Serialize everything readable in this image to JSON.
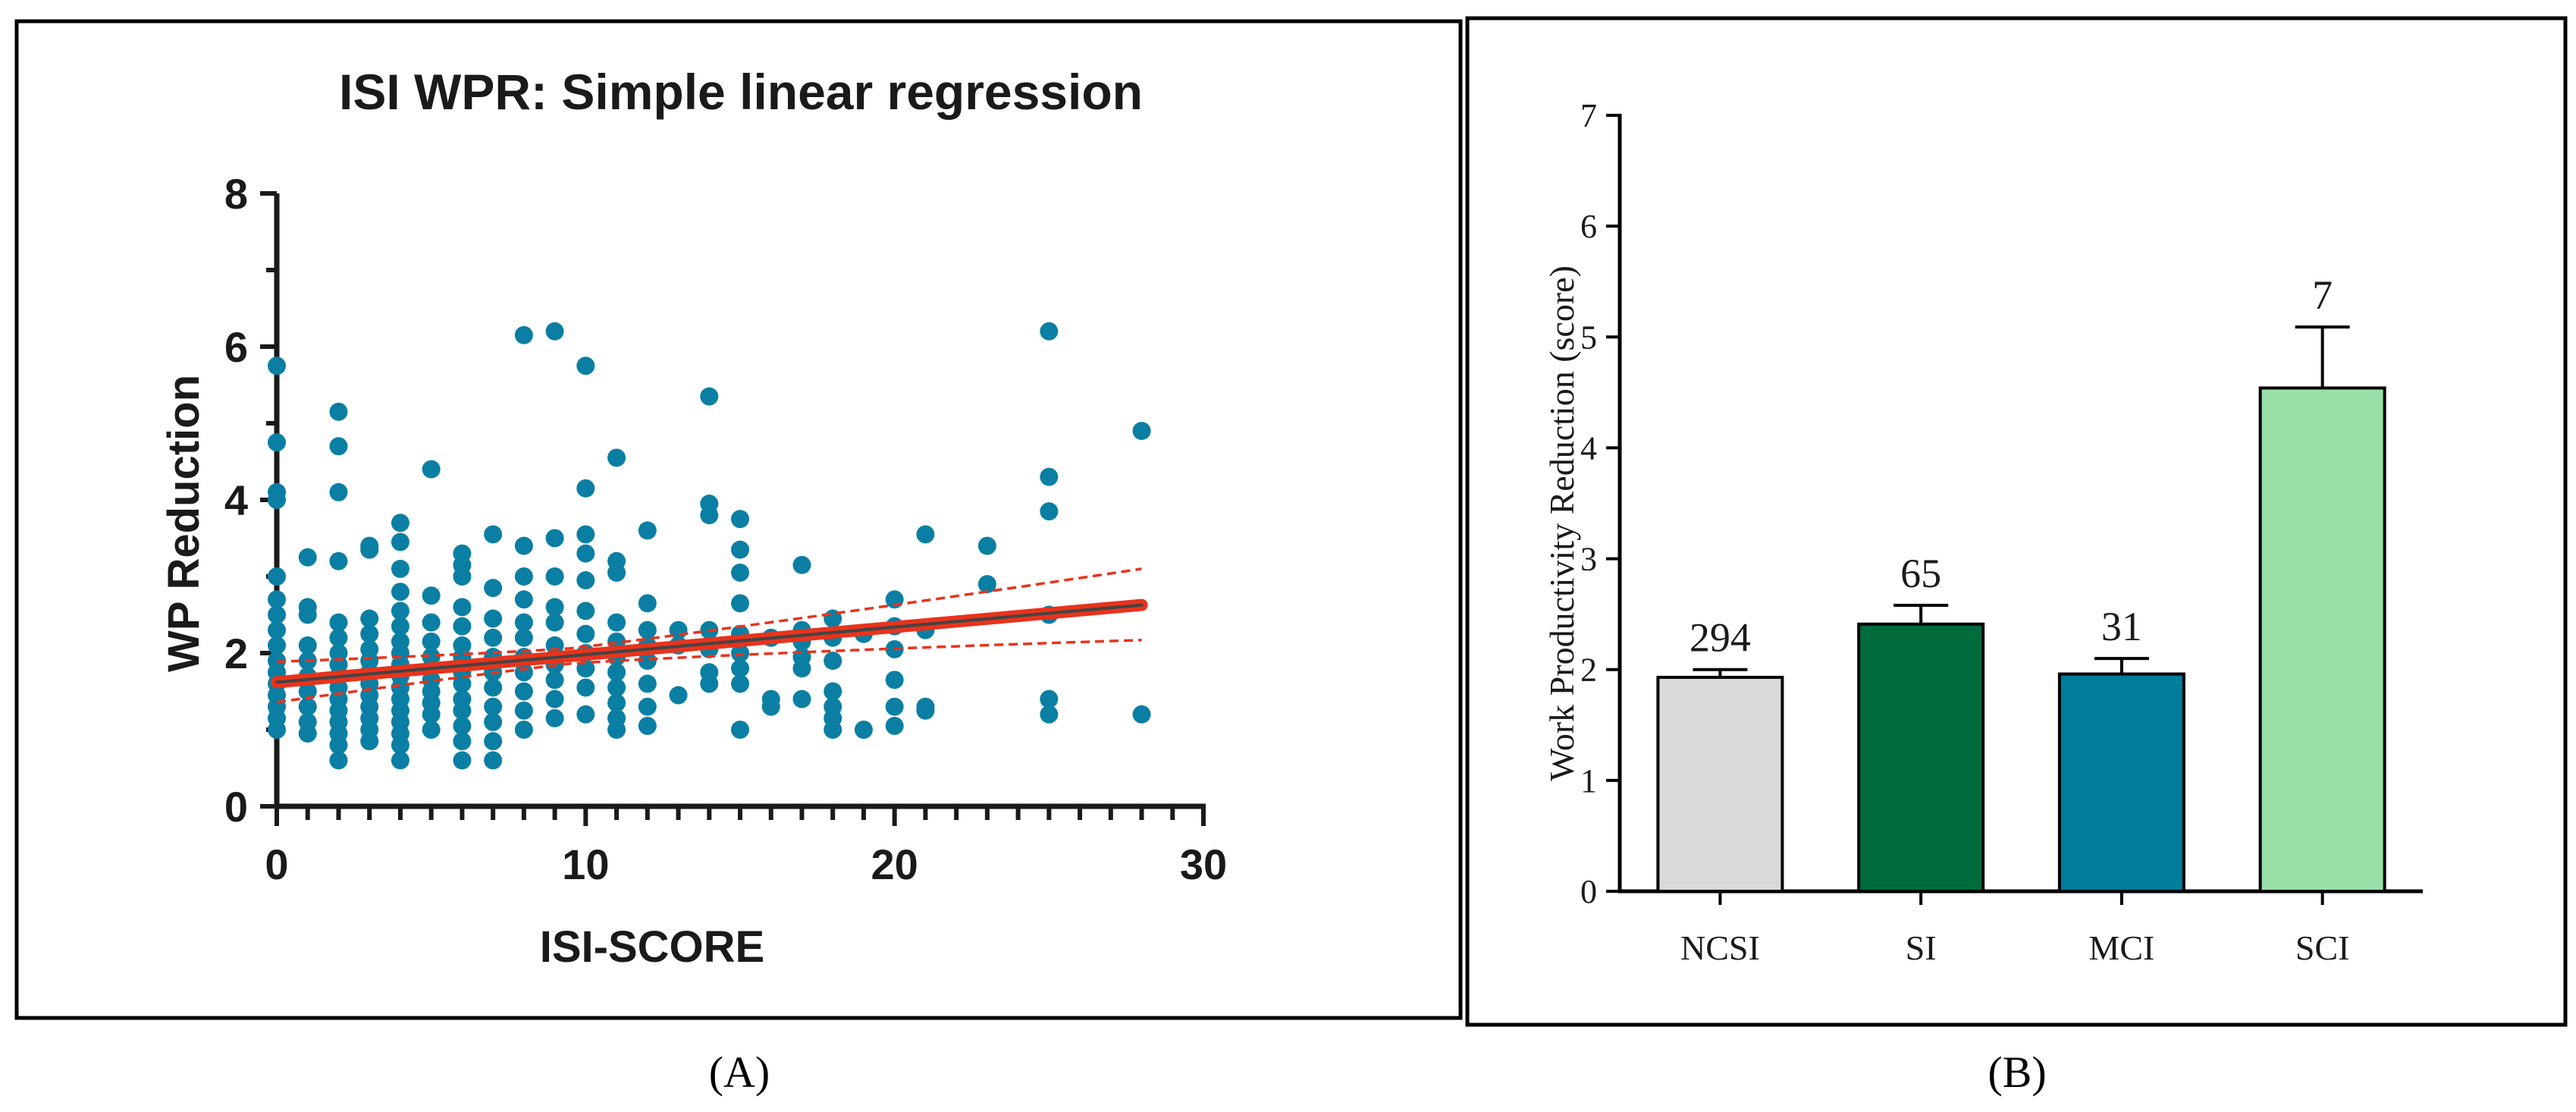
{
  "figure": {
    "panel_labels": [
      "(A)",
      "(B)"
    ]
  },
  "chart_data": [
    {
      "panel": "A",
      "type": "scatter",
      "title": "ISI WPR: Simple linear regression",
      "xlabel": "ISI-SCORE",
      "ylabel": "WP Reduction",
      "xlim": [
        0,
        30
      ],
      "ylim": [
        0,
        8
      ],
      "xticks": [
        0,
        10,
        20,
        30
      ],
      "yticks": [
        0,
        2,
        4,
        6,
        8
      ],
      "grid": false,
      "colors": {
        "points": "#0a7fa3",
        "fit": "#e8331c",
        "ci": "#e8331c",
        "fit_core": "#444444"
      },
      "regression": {
        "intercept": 1.62,
        "slope": 0.036,
        "ci_low_at_x_max": 2.27,
        "ci_high_at_x_max": 3.0
      },
      "points": [
        [
          0,
          5.75
        ],
        [
          0,
          4.75
        ],
        [
          0,
          4.1
        ],
        [
          0,
          4.0
        ],
        [
          0,
          3.0
        ],
        [
          0,
          2.7
        ],
        [
          0,
          2.5
        ],
        [
          0,
          2.3
        ],
        [
          0,
          2.1
        ],
        [
          0,
          1.9
        ],
        [
          0,
          1.75
        ],
        [
          0,
          1.6
        ],
        [
          0,
          1.45
        ],
        [
          0,
          1.3
        ],
        [
          0,
          1.15
        ],
        [
          0,
          1.0
        ],
        [
          1,
          3.25
        ],
        [
          1,
          2.6
        ],
        [
          1,
          2.5
        ],
        [
          1,
          2.1
        ],
        [
          1,
          1.9
        ],
        [
          1,
          1.7
        ],
        [
          1,
          1.5
        ],
        [
          1,
          1.3
        ],
        [
          1,
          1.1
        ],
        [
          1,
          0.95
        ],
        [
          2,
          5.15
        ],
        [
          2,
          4.7
        ],
        [
          2,
          4.1
        ],
        [
          2,
          3.2
        ],
        [
          2,
          2.4
        ],
        [
          2,
          2.2
        ],
        [
          2,
          2.0
        ],
        [
          2,
          1.85
        ],
        [
          2,
          1.7
        ],
        [
          2,
          1.55
        ],
        [
          2,
          1.4
        ],
        [
          2,
          1.25
        ],
        [
          2,
          1.1
        ],
        [
          2,
          0.95
        ],
        [
          2,
          0.8
        ],
        [
          2,
          0.6
        ],
        [
          3,
          3.4
        ],
        [
          3,
          3.35
        ],
        [
          3,
          2.45
        ],
        [
          3,
          2.25
        ],
        [
          3,
          2.05
        ],
        [
          3,
          1.9
        ],
        [
          3,
          1.75
        ],
        [
          3,
          1.6
        ],
        [
          3,
          1.45
        ],
        [
          3,
          1.3
        ],
        [
          3,
          1.15
        ],
        [
          3,
          1.0
        ],
        [
          3,
          0.85
        ],
        [
          4,
          3.7
        ],
        [
          4,
          3.45
        ],
        [
          4,
          3.1
        ],
        [
          4,
          2.8
        ],
        [
          4,
          2.55
        ],
        [
          4,
          2.35
        ],
        [
          4,
          2.15
        ],
        [
          4,
          2.0
        ],
        [
          4,
          1.85
        ],
        [
          4,
          1.7
        ],
        [
          4,
          1.55
        ],
        [
          4,
          1.4
        ],
        [
          4,
          1.25
        ],
        [
          4,
          1.1
        ],
        [
          4,
          0.95
        ],
        [
          4,
          0.8
        ],
        [
          4,
          0.6
        ],
        [
          5,
          4.4
        ],
        [
          5,
          2.75
        ],
        [
          5,
          2.4
        ],
        [
          5,
          2.15
        ],
        [
          5,
          1.95
        ],
        [
          5,
          1.8
        ],
        [
          5,
          1.65
        ],
        [
          5,
          1.5
        ],
        [
          5,
          1.35
        ],
        [
          5,
          1.2
        ],
        [
          5,
          1.0
        ],
        [
          6,
          3.3
        ],
        [
          6,
          3.15
        ],
        [
          6,
          3.0
        ],
        [
          6,
          2.6
        ],
        [
          6,
          2.35
        ],
        [
          6,
          2.1
        ],
        [
          6,
          1.95
        ],
        [
          6,
          1.75
        ],
        [
          6,
          1.6
        ],
        [
          6,
          1.4
        ],
        [
          6,
          1.25
        ],
        [
          6,
          1.05
        ],
        [
          6,
          0.85
        ],
        [
          6,
          0.6
        ],
        [
          7,
          3.55
        ],
        [
          7,
          2.85
        ],
        [
          7,
          2.45
        ],
        [
          7,
          2.2
        ],
        [
          7,
          1.95
        ],
        [
          7,
          1.75
        ],
        [
          7,
          1.55
        ],
        [
          7,
          1.3
        ],
        [
          7,
          1.1
        ],
        [
          7,
          0.85
        ],
        [
          7,
          0.6
        ],
        [
          8,
          6.15
        ],
        [
          8,
          3.4
        ],
        [
          8,
          3.0
        ],
        [
          8,
          2.7
        ],
        [
          8,
          2.4
        ],
        [
          8,
          2.2
        ],
        [
          8,
          1.95
        ],
        [
          8,
          1.75
        ],
        [
          8,
          1.5
        ],
        [
          8,
          1.25
        ],
        [
          8,
          1.0
        ],
        [
          9,
          6.2
        ],
        [
          9,
          3.5
        ],
        [
          9,
          3.0
        ],
        [
          9,
          2.6
        ],
        [
          9,
          2.4
        ],
        [
          9,
          2.1
        ],
        [
          9,
          1.85
        ],
        [
          9,
          1.65
        ],
        [
          9,
          1.4
        ],
        [
          9,
          1.15
        ],
        [
          10,
          5.75
        ],
        [
          10,
          4.15
        ],
        [
          10,
          3.55
        ],
        [
          10,
          3.3
        ],
        [
          10,
          2.95
        ],
        [
          10,
          2.55
        ],
        [
          10,
          2.25
        ],
        [
          10,
          2.0
        ],
        [
          10,
          1.8
        ],
        [
          10,
          1.55
        ],
        [
          10,
          1.2
        ],
        [
          11,
          4.55
        ],
        [
          11,
          3.2
        ],
        [
          11,
          3.05
        ],
        [
          11,
          2.4
        ],
        [
          11,
          2.15
        ],
        [
          11,
          1.95
        ],
        [
          11,
          1.75
        ],
        [
          11,
          1.55
        ],
        [
          11,
          1.35
        ],
        [
          11,
          1.15
        ],
        [
          11,
          1.0
        ],
        [
          12,
          3.6
        ],
        [
          12,
          2.65
        ],
        [
          12,
          2.3
        ],
        [
          12,
          2.1
        ],
        [
          12,
          1.9
        ],
        [
          12,
          1.6
        ],
        [
          12,
          1.3
        ],
        [
          12,
          1.05
        ],
        [
          13,
          2.3
        ],
        [
          13,
          2.1
        ],
        [
          13,
          1.45
        ],
        [
          14,
          5.35
        ],
        [
          14,
          3.95
        ],
        [
          14,
          3.8
        ],
        [
          14,
          2.3
        ],
        [
          14,
          2.05
        ],
        [
          14,
          1.75
        ],
        [
          14,
          1.6
        ],
        [
          15,
          3.75
        ],
        [
          15,
          3.35
        ],
        [
          15,
          3.05
        ],
        [
          15,
          2.65
        ],
        [
          15,
          2.25
        ],
        [
          15,
          2.0
        ],
        [
          15,
          1.8
        ],
        [
          15,
          1.6
        ],
        [
          15,
          1.0
        ],
        [
          16,
          2.2
        ],
        [
          16,
          1.4
        ],
        [
          16,
          1.3
        ],
        [
          17,
          3.15
        ],
        [
          17,
          2.3
        ],
        [
          17,
          2.15
        ],
        [
          17,
          1.95
        ],
        [
          17,
          1.8
        ],
        [
          17,
          1.4
        ],
        [
          18,
          2.45
        ],
        [
          18,
          2.2
        ],
        [
          18,
          1.9
        ],
        [
          18,
          1.5
        ],
        [
          18,
          1.3
        ],
        [
          18,
          1.15
        ],
        [
          18,
          1.0
        ],
        [
          19,
          2.25
        ],
        [
          19,
          1.0
        ],
        [
          20,
          2.7
        ],
        [
          20,
          2.35
        ],
        [
          20,
          2.05
        ],
        [
          20,
          1.65
        ],
        [
          20,
          1.3
        ],
        [
          20,
          1.05
        ],
        [
          21,
          3.55
        ],
        [
          21,
          2.3
        ],
        [
          21,
          1.3
        ],
        [
          21,
          1.25
        ],
        [
          23,
          3.4
        ],
        [
          23,
          2.9
        ],
        [
          25,
          6.2
        ],
        [
          25,
          4.3
        ],
        [
          25,
          3.85
        ],
        [
          25,
          2.5
        ],
        [
          25,
          1.4
        ],
        [
          25,
          1.2
        ],
        [
          28,
          4.9
        ],
        [
          28,
          1.2
        ]
      ]
    },
    {
      "panel": "B",
      "type": "bar",
      "xlabel": "",
      "ylabel": "Work Productivity Reduction (score)",
      "ylim": [
        0,
        7
      ],
      "yticks": [
        0,
        1,
        2,
        3,
        4,
        5,
        6,
        7
      ],
      "grid": false,
      "categories": [
        "NCSI",
        "SI",
        "MCI",
        "SCI"
      ],
      "values": [
        1.93,
        2.41,
        1.96,
        4.54
      ],
      "error_upper": [
        0.07,
        0.17,
        0.14,
        0.55
      ],
      "bar_labels": [
        "294",
        "65",
        "31",
        "7"
      ],
      "colors": [
        "#d9d9d9",
        "#006b3c",
        "#007d99",
        "#98e0a8"
      ]
    }
  ]
}
